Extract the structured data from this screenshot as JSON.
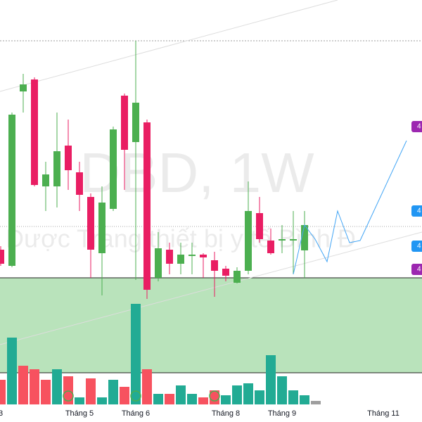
{
  "chart_data": {
    "type": "candlestick",
    "watermark": "DBD, 1W",
    "watermark_subtitle": "Dược Trang thiết bị y tế Bình Đ",
    "categories": [
      "3",
      null,
      null,
      null,
      null,
      null,
      null,
      "Tháng 5",
      null,
      null,
      null,
      null,
      "Tháng 6",
      null,
      null,
      null,
      null,
      null,
      null,
      null,
      "Tháng 8",
      null,
      null,
      null,
      null,
      "Tháng 9",
      null,
      null,
      null,
      null,
      null,
      null,
      null,
      null,
      "Tháng 11",
      null,
      null
    ],
    "open": [
      245,
      222,
      470,
      487,
      335,
      335,
      393,
      355,
      320,
      240,
      303,
      464,
      398,
      426,
      205,
      245,
      225,
      236,
      238,
      230,
      218,
      198,
      215,
      297,
      258,
      258,
      258,
      244,
      null,
      null,
      null,
      null,
      null,
      null,
      null,
      null,
      null
    ],
    "high": [
      250,
      440,
      495,
      490,
      370,
      440,
      430,
      370,
      325,
      335,
      420,
      467,
      542,
      430,
      270,
      255,
      255,
      255,
      240,
      242,
      222,
      220,
      342,
      320,
      275,
      280,
      300,
      300,
      null,
      null,
      null,
      null,
      null,
      null,
      null,
      null,
      null
    ],
    "low": [
      222,
      220,
      440,
      335,
      300,
      305,
      330,
      300,
      205,
      180,
      300,
      330,
      202,
      175,
      200,
      210,
      210,
      210,
      205,
      178,
      200,
      197,
      210,
      255,
      238,
      240,
      210,
      205,
      null,
      null,
      null,
      null,
      null,
      null,
      null,
      null,
      null
    ],
    "close": [
      225,
      437,
      480,
      337,
      352,
      385,
      358,
      323,
      245,
      312,
      416,
      387,
      454,
      188,
      247,
      225,
      238,
      238,
      234,
      215,
      208,
      215,
      300,
      260,
      240,
      260,
      260,
      280,
      null,
      null,
      null,
      null,
      null,
      null,
      null,
      null,
      null
    ],
    "volume": [
      35,
      95,
      55,
      50,
      35,
      50,
      40,
      10,
      37,
      10,
      35,
      25,
      143,
      50,
      15,
      15,
      27,
      15,
      10,
      20,
      13,
      27,
      30,
      20,
      70,
      40,
      20,
      13,
      5,
      null,
      null,
      null,
      null,
      null,
      null,
      null,
      null
    ],
    "volume_colors": [
      "#f7525f",
      "#22ab94",
      "#f7525f",
      "#f7525f",
      "#f7525f",
      "#22ab94",
      "#f7525f",
      "#22ab94",
      "#f7525f",
      "#22ab94",
      "#22ab94",
      "#f7525f",
      "#22ab94",
      "#f7525f",
      "#22ab94",
      "#f7525f",
      "#22ab94",
      "#22ab94",
      "#f7525f",
      "#f7525f",
      "#22ab94",
      "#22ab94",
      "#22ab94",
      "#22ab94",
      "#22ab94",
      "#22ab94",
      "#22ab94",
      "#22ab94",
      "#9e9e9e",
      null,
      null,
      null,
      null,
      null,
      null,
      null,
      null
    ],
    "up_color": "#4caf50",
    "down_color": "#e91e63",
    "price_tags": [
      {
        "text": "4",
        "color": "#9c27b0"
      },
      {
        "text": "4",
        "color": "#2196f3"
      },
      {
        "text": "4",
        "color": "#2196f3"
      },
      {
        "text": "4",
        "color": "#9c27b0"
      }
    ]
  }
}
